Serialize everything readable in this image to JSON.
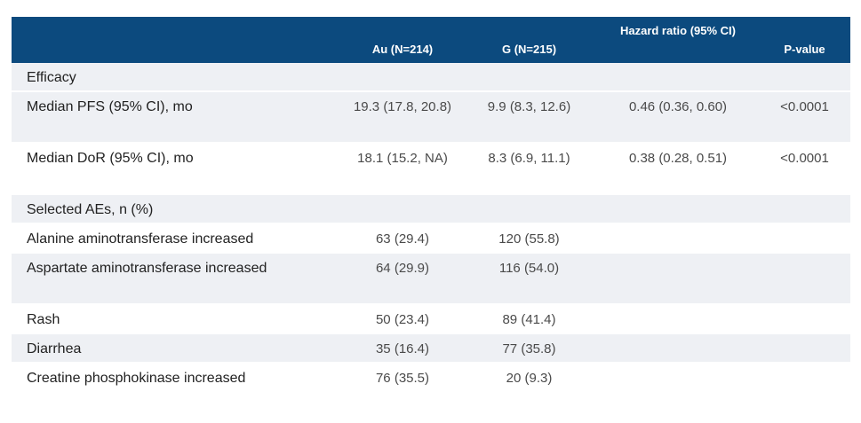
{
  "header": {
    "col_au": "Au (N=214)",
    "col_g": "G (N=215)",
    "col_hr": "Hazard ratio (95% CI)",
    "col_p": "P-value"
  },
  "rows": [
    {
      "label": "Efficacy",
      "au": "",
      "g": "",
      "hr": "",
      "p": ""
    },
    {
      "label": "Median PFS (95% CI), mo",
      "au": "19.3 (17.8, 20.8)",
      "g": "9.9 (8.3, 12.6)",
      "hr": "0.46 (0.36, 0.60)",
      "p": "<0.0001"
    },
    {
      "label": "Median DoR (95% CI), mo",
      "au": "18.1 (15.2, NA)",
      "g": "8.3 (6.9, 11.1)",
      "hr": "0.38 (0.28, 0.51)",
      "p": "<0.0001"
    },
    {
      "label": "Selected AEs, n (%)",
      "au": "",
      "g": "",
      "hr": "",
      "p": ""
    },
    {
      "label": "Alanine aminotransferase increased",
      "au": "63 (29.4)",
      "g": "120 (55.8)",
      "hr": "",
      "p": ""
    },
    {
      "label": "Aspartate aminotransferase increased",
      "au": "64 (29.9)",
      "g": "116 (54.0)",
      "hr": "",
      "p": ""
    },
    {
      "label": "Rash",
      "au": "50 (23.4)",
      "g": "89 (41.4)",
      "hr": "",
      "p": ""
    },
    {
      "label": "Diarrhea",
      "au": "35 (16.4)",
      "g": "77 (35.8)",
      "hr": "",
      "p": ""
    },
    {
      "label": "Creatine phosphokinase increased",
      "au": "76 (35.5)",
      "g": "20 (9.3)",
      "hr": "",
      "p": ""
    }
  ]
}
